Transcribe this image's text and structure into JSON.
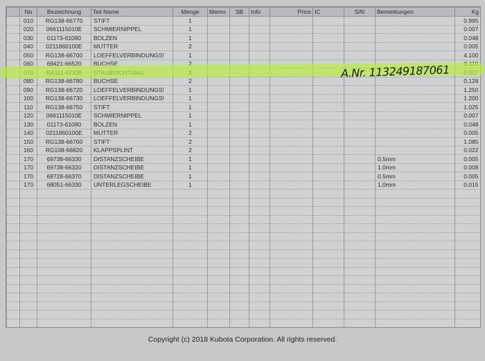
{
  "columns": [
    "No",
    "Bezeichnung",
    "Teil Name",
    "Menge",
    "Memo",
    "SB",
    "Info",
    "Price",
    "IC",
    "S/N",
    "Bemerkungen",
    "Kg"
  ],
  "rows": [
    {
      "no": "010",
      "bez": "RG138-66770",
      "name": "STIFT",
      "menge": "1",
      "bem": "",
      "kg": "0.995"
    },
    {
      "no": "020",
      "bez": "0661115010E",
      "name": "SCHMIERNIPPEL",
      "menge": "1",
      "bem": "",
      "kg": "0.007"
    },
    {
      "no": "030",
      "bez": "01173-61080",
      "name": "BOLZEN",
      "menge": "1",
      "bem": "",
      "kg": "0.048"
    },
    {
      "no": "040",
      "bez": "0211860100E",
      "name": "MUTTER",
      "menge": "2",
      "bem": "",
      "kg": "0.005"
    },
    {
      "no": "050",
      "bez": "RG138-66700",
      "name": "LOEFFELVERBINDUNGS!",
      "menge": "1",
      "bem": "",
      "kg": "4.100"
    },
    {
      "no": "060",
      "bez": "69421-66520",
      "name": "BUCHSE",
      "menge": "2",
      "bem": "",
      "kg": "0.110"
    },
    {
      "no": "070",
      "bez": "RA111-67330",
      "name": "STAUBDICHTUNG",
      "menge": "2",
      "bem": "",
      "kg": "0.007"
    },
    {
      "no": "080",
      "bez": "RG138-66780",
      "name": "BUCHSE",
      "menge": "2",
      "bem": "",
      "kg": "0.128"
    },
    {
      "no": "090",
      "bez": "RG138-66720",
      "name": "LOEFFELVERBINDUNGS!",
      "menge": "1",
      "bem": "",
      "kg": "1.250"
    },
    {
      "no": "100",
      "bez": "RG138-66730",
      "name": "LOEFFELVERBINDUNGS!",
      "menge": "1",
      "bem": "",
      "kg": "1.200"
    },
    {
      "no": "110",
      "bez": "RG138-66750",
      "name": "STIFT",
      "menge": "1",
      "bem": "",
      "kg": "1.025"
    },
    {
      "no": "120",
      "bez": "0661115010E",
      "name": "SCHMIERNIPPEL",
      "menge": "1",
      "bem": "",
      "kg": "0.007"
    },
    {
      "no": "130",
      "bez": "01173-61080",
      "name": "BOLZEN",
      "menge": "1",
      "bem": "",
      "kg": "0.048"
    },
    {
      "no": "140",
      "bez": "0211860100E",
      "name": "MUTTER",
      "menge": "2",
      "bem": "",
      "kg": "0.005"
    },
    {
      "no": "150",
      "bez": "RG138-66760",
      "name": "STIFT",
      "menge": "2",
      "bem": "",
      "kg": "1.085"
    },
    {
      "no": "160",
      "bez": "RG108-66820",
      "name": "KLAPPSPLINT",
      "menge": "2",
      "bem": "",
      "kg": "0.022"
    },
    {
      "no": "170",
      "bez": "69738-66330",
      "name": "DISTANZSCHEIBE",
      "menge": "1",
      "bem": "0.5mm",
      "kg": "0.005"
    },
    {
      "no": "170",
      "bez": "69738-66320",
      "name": "DISTANZSCHEIBE",
      "menge": "1",
      "bem": "1.0mm",
      "kg": "0.008"
    },
    {
      "no": "170",
      "bez": "69728-66370",
      "name": "DISTANZSCHEIBE",
      "menge": "1",
      "bem": "0.5mm",
      "kg": "0.005"
    },
    {
      "no": "170",
      "bez": "68051-66330",
      "name": "UNTERLEGSCHEIBE",
      "menge": "1",
      "bem": "1.0mm",
      "kg": "0.015"
    }
  ],
  "handwritten_note": "A.Nr. 113249187061",
  "highlight_color": "#b8f03a",
  "copyright": "Copyright (c) 2018 Kubota Corporation. All rights reserved."
}
